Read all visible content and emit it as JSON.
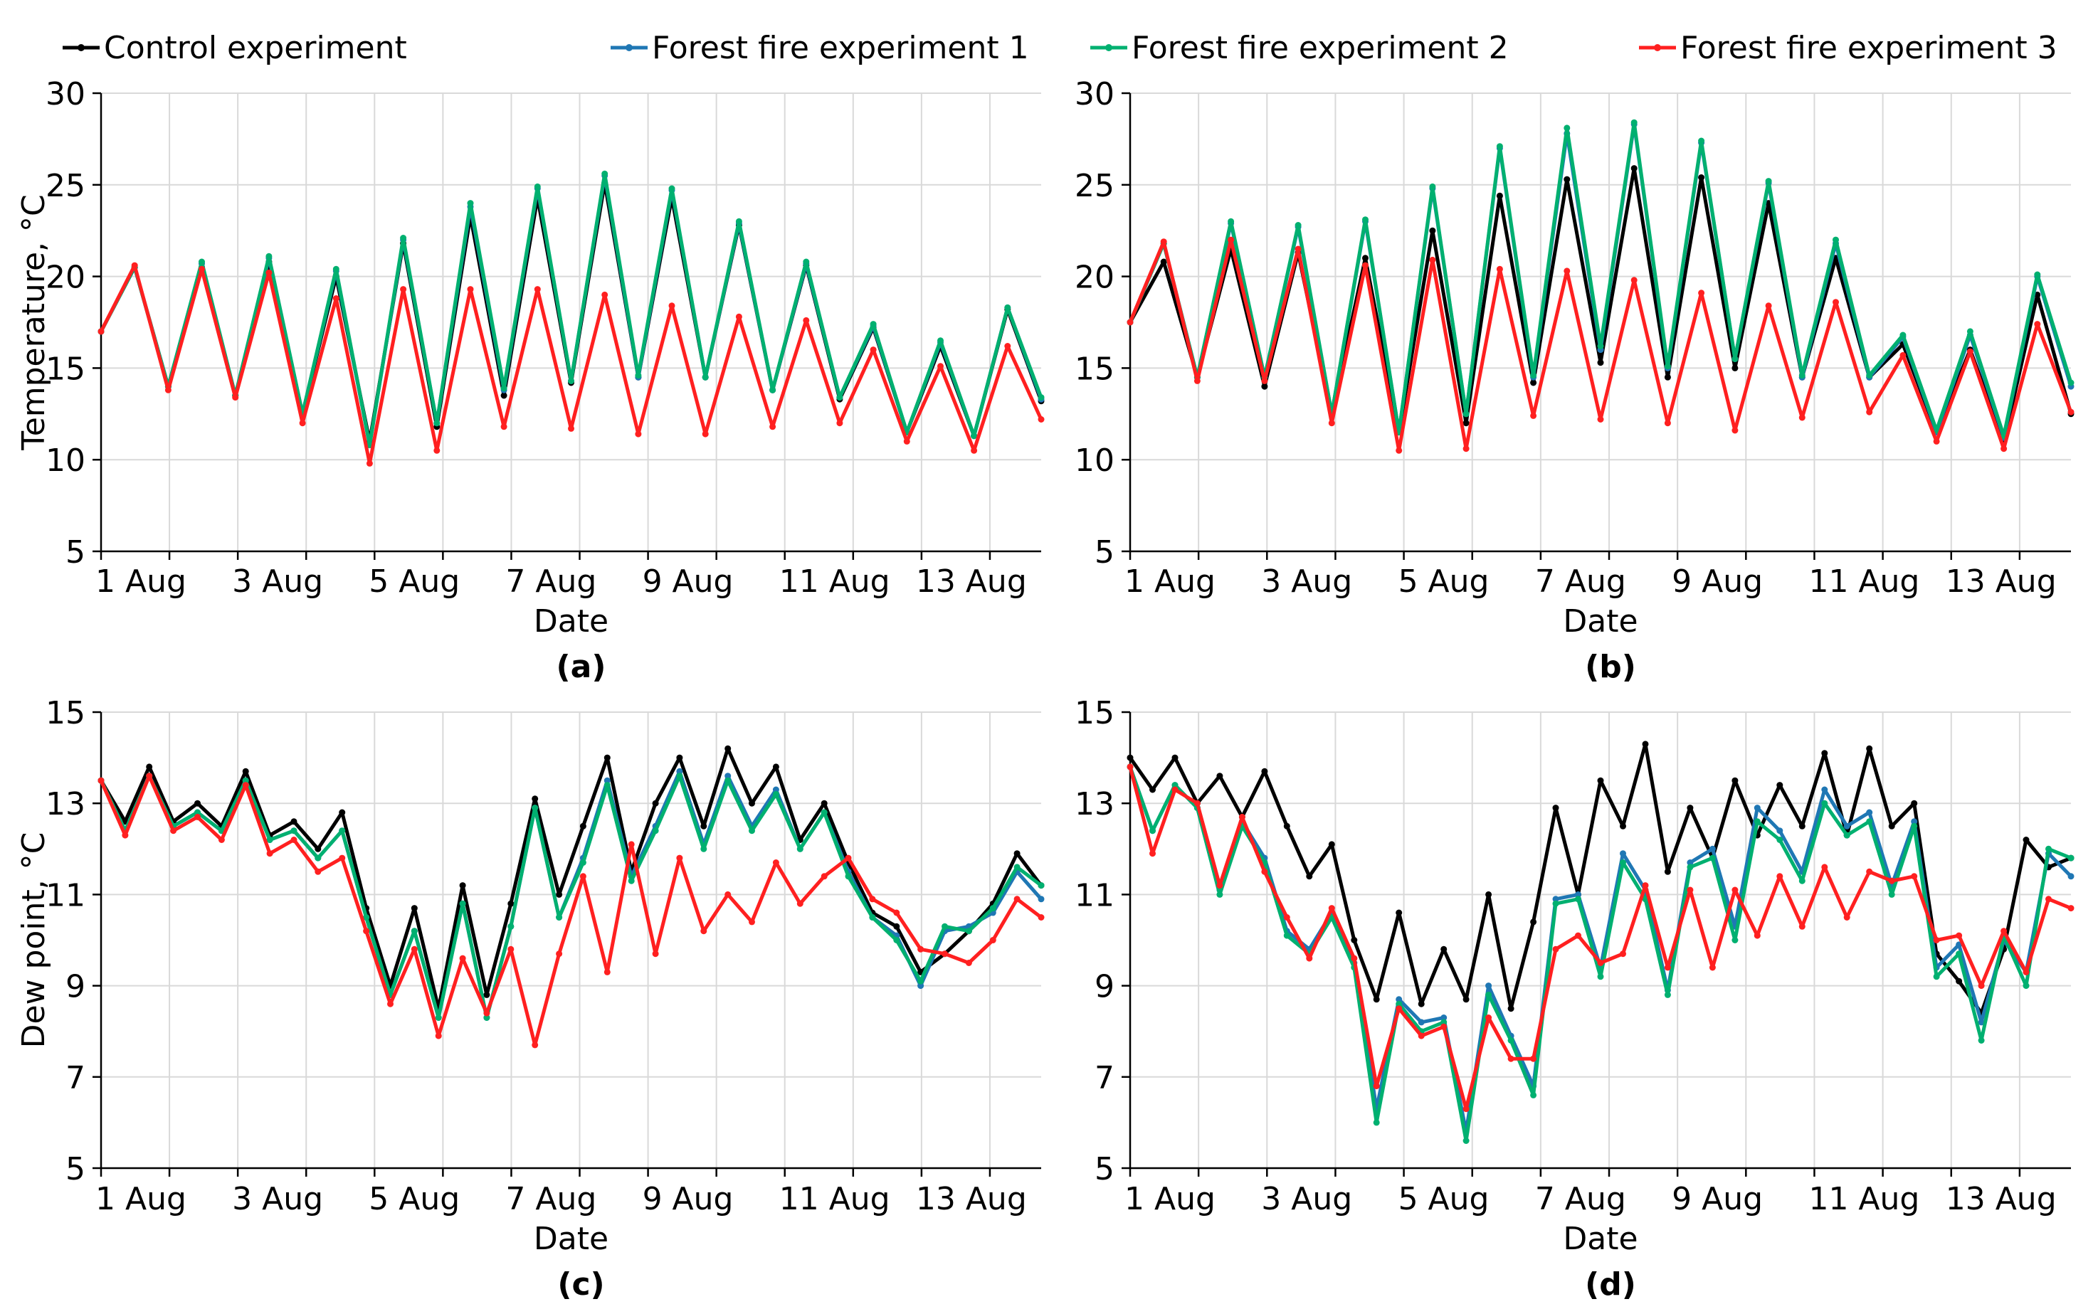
{
  "legend": [
    {
      "label": "Control experiment",
      "color": "#000000"
    },
    {
      "label": "Forest fire experiment 1",
      "color": "#1f77b4"
    },
    {
      "label": "Forest fire experiment 2",
      "color": "#00b070"
    },
    {
      "label": "Forest fire experiment 3",
      "color": "#ff2020"
    }
  ],
  "chart_data": [
    {
      "type": "line",
      "panel_label": "(a)",
      "xlabel": "Date",
      "ylabel": "Temperature, °C",
      "ylim": [
        5,
        30
      ],
      "yticks": [
        "5",
        "10",
        "15",
        "20",
        "25",
        "30"
      ],
      "xlim_days": [
        1,
        14.75
      ],
      "xticks": [
        "1 Aug",
        "3 Aug",
        "5 Aug",
        "7 Aug",
        "9 Aug",
        "11 Aug",
        "13 Aug"
      ],
      "grid": true,
      "series": [
        {
          "name": "Control experiment",
          "color": "#000000",
          "x": [
            "1 Aug 00:00",
            "1 Aug 12:00",
            "2 Aug 00:00",
            "2 Aug 12:00",
            "3 Aug 00:00",
            "3 Aug 12:00",
            "4 Aug 00:00",
            "4 Aug 12:00",
            "5 Aug 00:00",
            "5 Aug 12:00",
            "6 Aug 00:00",
            "6 Aug 12:00",
            "7 Aug 00:00",
            "7 Aug 12:00",
            "8 Aug 00:00",
            "8 Aug 12:00",
            "9 Aug 00:00",
            "9 Aug 12:00",
            "10 Aug 00:00",
            "10 Aug 12:00",
            "11 Aug 00:00",
            "11 Aug 12:00",
            "12 Aug 00:00",
            "12 Aug 12:00",
            "13 Aug 00:00",
            "13 Aug 12:00",
            "14 Aug 00:00",
            "14 Aug 12:00",
            "14 Aug 18:00"
          ],
          "y": [
            17,
            20.5,
            14,
            20.5,
            13.5,
            20.8,
            12.5,
            20,
            11,
            21.8,
            11.8,
            23.3,
            13.5,
            24.3,
            14.2,
            25.1,
            14.5,
            24.3,
            14.5,
            22.8,
            13.8,
            20.6,
            13.3,
            17.2,
            11.5,
            16.2,
            11.3,
            18.2,
            13.2
          ]
        },
        {
          "name": "Forest fire experiment 1",
          "color": "#1f77b4",
          "y": [
            17,
            20.5,
            14,
            20.7,
            13.5,
            21,
            12.5,
            20.3,
            10.8,
            22,
            12,
            23.8,
            13.8,
            24.8,
            14.3,
            25.5,
            14.5,
            24.7,
            14.5,
            22.9,
            13.8,
            20.7,
            13.4,
            17.3,
            11.5,
            16.4,
            11.3,
            18.3,
            13.3
          ]
        },
        {
          "name": "Forest fire experiment 2",
          "color": "#00b070",
          "y": [
            17,
            20.5,
            14,
            20.8,
            13.5,
            21.1,
            12.5,
            20.4,
            10.8,
            22.1,
            12,
            24,
            13.9,
            24.9,
            14.3,
            25.6,
            14.6,
            24.8,
            14.5,
            23,
            13.8,
            20.8,
            13.4,
            17.4,
            11.5,
            16.5,
            11.3,
            18.3,
            13.4
          ]
        },
        {
          "name": "Forest fire experiment 3",
          "color": "#ff2020",
          "y": [
            17,
            20.6,
            13.8,
            20.4,
            13.4,
            20.2,
            12,
            18.8,
            9.8,
            19.3,
            10.5,
            19.3,
            11.8,
            19.3,
            11.7,
            19,
            11.4,
            18.4,
            11.4,
            17.8,
            11.8,
            17.6,
            12,
            16,
            11,
            15.1,
            10.5,
            16.2,
            12.2
          ]
        }
      ]
    },
    {
      "type": "line",
      "panel_label": "(b)",
      "xlabel": "Date",
      "ylabel": "",
      "ylim": [
        5,
        30
      ],
      "yticks": [
        "5",
        "10",
        "15",
        "20",
        "25",
        "30"
      ],
      "xlim_days": [
        1,
        14.75
      ],
      "xticks": [
        "1 Aug",
        "3 Aug",
        "5 Aug",
        "7 Aug",
        "9 Aug",
        "11 Aug",
        "13 Aug"
      ],
      "grid": true,
      "series": [
        {
          "name": "Control experiment",
          "color": "#000000",
          "y": [
            17.5,
            20.8,
            14.5,
            21.5,
            14,
            21.3,
            12.5,
            21,
            11.5,
            22.5,
            12,
            24.4,
            14.2,
            25.3,
            15.3,
            25.9,
            14.5,
            25.4,
            15,
            24,
            14.5,
            21,
            14.5,
            16.3,
            11.5,
            16,
            11,
            19,
            12.5
          ]
        },
        {
          "name": "Forest fire experiment 1",
          "color": "#1f77b4",
          "y": [
            17.5,
            21.8,
            14.5,
            22.9,
            14.5,
            22.7,
            12.5,
            23,
            11.5,
            24.8,
            12.5,
            27,
            14.5,
            27.8,
            16,
            28.3,
            15,
            27.3,
            15.5,
            25.1,
            14.5,
            21.8,
            14.5,
            16.7,
            11.5,
            16.8,
            11.2,
            20,
            14
          ]
        },
        {
          "name": "Forest fire experiment 2",
          "color": "#00b070",
          "y": [
            17.5,
            21.8,
            14.5,
            23,
            14.5,
            22.8,
            12.5,
            23.1,
            11.5,
            24.9,
            12.5,
            27.1,
            14.6,
            28.1,
            16.2,
            28.4,
            15.1,
            27.4,
            15.5,
            25.2,
            14.6,
            22,
            14.6,
            16.8,
            11.6,
            17,
            11.3,
            20.1,
            14.2
          ]
        },
        {
          "name": "Forest fire experiment 3",
          "color": "#ff2020",
          "y": [
            17.5,
            21.9,
            14.3,
            22,
            14.3,
            21.5,
            12,
            20.6,
            10.5,
            20.9,
            10.6,
            20.4,
            12.4,
            20.3,
            12.2,
            19.8,
            12,
            19.1,
            11.6,
            18.4,
            12.3,
            18.6,
            12.6,
            15.7,
            11,
            15.9,
            10.6,
            17.4,
            12.6
          ]
        }
      ]
    },
    {
      "type": "line",
      "panel_label": "(c)",
      "xlabel": "Date",
      "ylabel": "Dew point, °C",
      "ylim": [
        5,
        15
      ],
      "yticks": [
        "5",
        "7",
        "9",
        "11",
        "13",
        "15"
      ],
      "xlim_days": [
        1,
        14.75
      ],
      "xticks": [
        "1 Aug",
        "3 Aug",
        "5 Aug",
        "7 Aug",
        "9 Aug",
        "11 Aug",
        "13 Aug"
      ],
      "grid": true,
      "series": [
        {
          "name": "Control experiment",
          "color": "#000000",
          "y": [
            13.5,
            12.6,
            13.8,
            12.6,
            13,
            12.5,
            13.7,
            12.3,
            12.6,
            12,
            12.8,
            10.7,
            9,
            10.7,
            8.5,
            11.2,
            8.8,
            10.8,
            13.1,
            11,
            12.5,
            14,
            11.5,
            13,
            14,
            12.5,
            14.2,
            13,
            13.8,
            12.2,
            13,
            11.7,
            10.6,
            10.3,
            9.3,
            9.7,
            10.2,
            10.8,
            11.9,
            11.2
          ]
        },
        {
          "name": "Forest fire experiment 1",
          "color": "#1f77b4",
          "y": [
            13.5,
            12.4,
            13.6,
            12.5,
            12.8,
            12.4,
            13.5,
            12.2,
            12.4,
            11.8,
            12.4,
            10.5,
            8.8,
            10.2,
            8.3,
            10.8,
            8.3,
            10.3,
            12.9,
            10.5,
            11.8,
            13.5,
            11.4,
            12.5,
            13.7,
            12.1,
            13.6,
            12.5,
            13.3,
            12,
            12.8,
            11.5,
            10.5,
            10.1,
            9,
            10.2,
            10.3,
            10.6,
            11.5,
            10.9
          ]
        },
        {
          "name": "Forest fire experiment 2",
          "color": "#00b070",
          "y": [
            13.5,
            12.4,
            13.6,
            12.5,
            12.8,
            12.4,
            13.5,
            12.2,
            12.4,
            11.8,
            12.4,
            10.5,
            8.8,
            10.2,
            8.3,
            10.8,
            8.3,
            10.3,
            12.9,
            10.5,
            11.7,
            13.4,
            11.3,
            12.4,
            13.6,
            12,
            13.5,
            12.4,
            13.2,
            12,
            12.8,
            11.4,
            10.5,
            10,
            9.1,
            10.3,
            10.2,
            10.7,
            11.6,
            11.2
          ]
        },
        {
          "name": "Forest fire experiment 3",
          "color": "#ff2020",
          "y": [
            13.5,
            12.3,
            13.6,
            12.4,
            12.7,
            12.2,
            13.4,
            11.9,
            12.2,
            11.5,
            11.8,
            10.2,
            8.6,
            9.8,
            7.9,
            9.6,
            8.4,
            9.8,
            7.7,
            9.7,
            11.4,
            9.3,
            12.1,
            9.7,
            11.8,
            10.2,
            11,
            10.4,
            11.7,
            10.8,
            11.4,
            11.8,
            10.9,
            10.6,
            9.8,
            9.7,
            9.5,
            10,
            10.9,
            10.5
          ]
        }
      ]
    },
    {
      "type": "line",
      "panel_label": "(d)",
      "xlabel": "Date",
      "ylabel": "",
      "ylim": [
        5,
        15
      ],
      "yticks": [
        "5",
        "7",
        "9",
        "11",
        "13",
        "15"
      ],
      "xlim_days": [
        1,
        14.75
      ],
      "xticks": [
        "1 Aug",
        "3 Aug",
        "5 Aug",
        "7 Aug",
        "9 Aug",
        "11 Aug",
        "13 Aug"
      ],
      "grid": true,
      "series": [
        {
          "name": "Control experiment",
          "color": "#000000",
          "y": [
            14,
            13.3,
            14,
            13,
            13.6,
            12.7,
            13.7,
            12.5,
            11.4,
            12.1,
            10,
            8.7,
            10.6,
            8.6,
            9.8,
            8.7,
            11,
            8.5,
            10.4,
            12.9,
            11,
            13.5,
            12.5,
            14.3,
            11.5,
            12.9,
            11.8,
            13.5,
            12.3,
            13.4,
            12.5,
            14.1,
            12.3,
            14.2,
            12.5,
            13,
            9.7,
            9.1,
            8.4,
            9.8,
            12.2,
            11.6,
            11.8
          ]
        },
        {
          "name": "Forest fire experiment 1",
          "color": "#1f77b4",
          "y": [
            13.8,
            12.4,
            13.4,
            12.9,
            11.1,
            12.6,
            11.8,
            10.2,
            9.8,
            10.6,
            9.5,
            6.3,
            8.7,
            8.2,
            8.3,
            5.8,
            9,
            7.9,
            6.8,
            10.9,
            11,
            9.4,
            11.9,
            11.1,
            8.9,
            11.7,
            12,
            10.3,
            12.9,
            12.4,
            11.5,
            13.3,
            12.5,
            12.8,
            11.2,
            12.6,
            9.4,
            9.9,
            8.2,
            10,
            9.3,
            11.9,
            11.4
          ]
        },
        {
          "name": "Forest fire experiment 2",
          "color": "#00b070",
          "y": [
            13.8,
            12.4,
            13.4,
            12.9,
            11,
            12.5,
            11.7,
            10.1,
            9.7,
            10.5,
            9.4,
            6,
            8.6,
            8,
            8.2,
            5.6,
            8.8,
            7.8,
            6.6,
            10.8,
            10.9,
            9.2,
            11.7,
            10.9,
            8.8,
            11.6,
            11.8,
            10,
            12.6,
            12.2,
            11.3,
            13,
            12.3,
            12.6,
            11,
            12.5,
            9.2,
            9.7,
            7.8,
            10.1,
            9,
            12,
            11.8
          ]
        },
        {
          "name": "Forest fire experiment 3",
          "color": "#ff2020",
          "y": [
            13.8,
            11.9,
            13.3,
            13,
            11.2,
            12.7,
            11.5,
            10.5,
            9.6,
            10.7,
            9.6,
            6.8,
            8.5,
            7.9,
            8.1,
            6.3,
            8.3,
            7.4,
            7.4,
            9.8,
            10.1,
            9.5,
            9.7,
            11.2,
            9.4,
            11.1,
            9.4,
            11.1,
            10.1,
            11.4,
            10.3,
            11.6,
            10.5,
            11.5,
            11.3,
            11.4,
            10,
            10.1,
            9,
            10.2,
            9.3,
            10.9,
            10.7
          ]
        }
      ]
    }
  ]
}
